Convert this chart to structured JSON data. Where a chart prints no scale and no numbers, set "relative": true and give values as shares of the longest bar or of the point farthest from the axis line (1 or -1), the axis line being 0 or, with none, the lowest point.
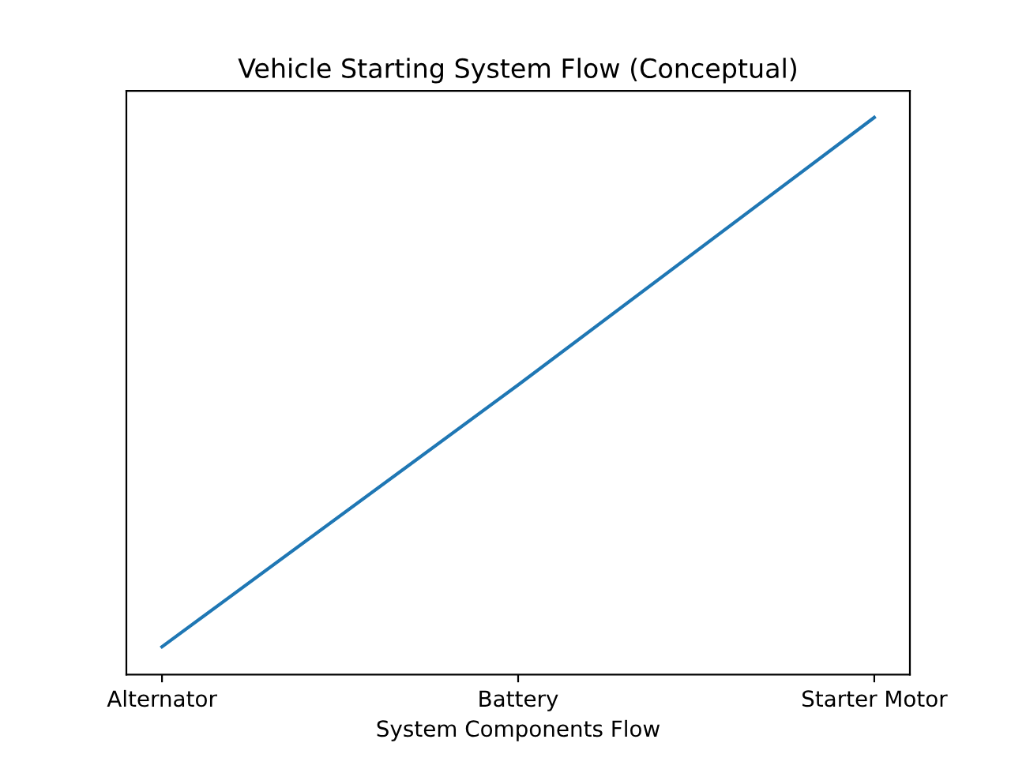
{
  "chart_data": {
    "type": "line",
    "title": "Vehicle Starting System Flow (Conceptual)",
    "xlabel": "System Components Flow",
    "categories": [
      "Alternator",
      "Battery",
      "Starter Motor"
    ],
    "series": [
      {
        "color": "#1f77b4",
        "values": [
          0.05,
          0.52,
          1
        ]
      }
    ],
    "relative": true,
    "grid": false,
    "marker": "none",
    "line_style": "solid"
  }
}
